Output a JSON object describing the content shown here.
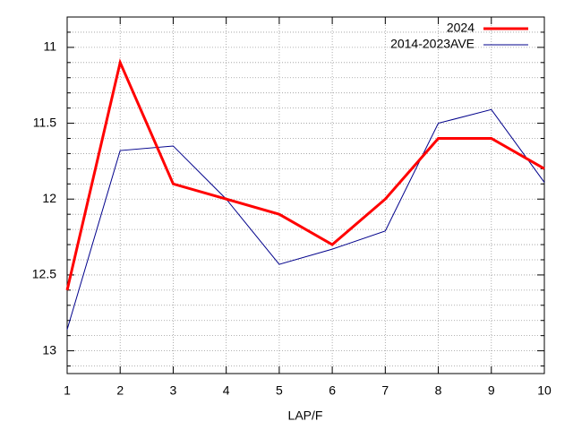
{
  "chart_data": {
    "type": "line",
    "x_label": "LAP/F",
    "x": [
      1,
      2,
      3,
      4,
      5,
      6,
      7,
      8,
      9,
      10
    ],
    "series": [
      {
        "name": "2024",
        "color": "#ff0000",
        "width": 3,
        "values": [
          12.6,
          11.1,
          11.9,
          12.0,
          12.1,
          12.3,
          12.0,
          11.6,
          11.6,
          11.8
        ]
      },
      {
        "name": "2014-2023AVE",
        "color": "#00008b",
        "width": 1,
        "values": [
          12.86,
          11.68,
          11.65,
          12.0,
          12.43,
          12.33,
          12.21,
          11.5,
          11.41,
          11.89
        ]
      }
    ],
    "xlim": [
      1,
      10
    ],
    "xticks": [
      1,
      2,
      3,
      4,
      5,
      6,
      7,
      8,
      9,
      10
    ],
    "ylim": [
      10.8,
      13.15
    ],
    "yticks": [
      11,
      11.5,
      12,
      12.5,
      13
    ],
    "y_inverted": true,
    "grid": true,
    "legend": "upper-right"
  }
}
